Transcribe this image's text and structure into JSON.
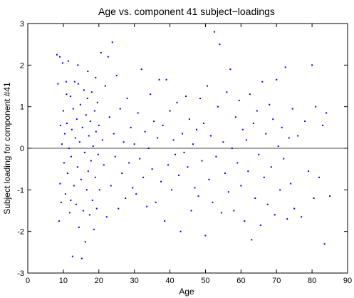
{
  "chart_data": {
    "type": "scatter",
    "title": "Age vs. component 41 subject−loadings",
    "xlabel": "Age",
    "ylabel": "Subject loading for component #41",
    "xlim": [
      0,
      90
    ],
    "ylim": [
      -3,
      3
    ],
    "xticks": [
      0,
      10,
      20,
      30,
      40,
      50,
      60,
      70,
      80,
      90
    ],
    "yticks": [
      -3,
      -2,
      -1,
      0,
      1,
      2,
      3
    ],
    "reference_line_y": 0,
    "grid": false,
    "legend": "none",
    "colors": {
      "points": "#0000ff",
      "axes": "#000000",
      "zero_line": "#444444"
    },
    "series": [
      {
        "points": [
          [
            8.2,
            2.25
          ],
          [
            8.5,
            1.55
          ],
          [
            8.8,
            -1.75
          ],
          [
            9.0,
            2.2
          ],
          [
            9.2,
            0.55
          ],
          [
            9.4,
            -1.3
          ],
          [
            9.6,
            0.1
          ],
          [
            9.8,
            2.05
          ],
          [
            10.0,
            0.9
          ],
          [
            10.2,
            -0.35
          ],
          [
            10.4,
            0.35
          ],
          [
            10.6,
            -1.1
          ],
          [
            10.8,
            1.6
          ],
          [
            11.0,
            0.6
          ],
          [
            11.2,
            -0.6
          ],
          [
            11.4,
            2.1
          ],
          [
            11.6,
            0.0
          ],
          [
            11.8,
            -1.55
          ],
          [
            12.0,
            1.25
          ],
          [
            12.2,
            -0.2
          ],
          [
            12.4,
            0.45
          ],
          [
            12.6,
            -2.6
          ],
          [
            12.8,
            0.95
          ],
          [
            13.0,
            -0.9
          ],
          [
            13.2,
            1.6
          ],
          [
            13.4,
            0.25
          ],
          [
            13.6,
            -1.35
          ],
          [
            13.8,
            0.7
          ],
          [
            14.0,
            -0.45
          ],
          [
            14.2,
            1.55
          ],
          [
            14.4,
            -1.9
          ],
          [
            14.6,
            0.15
          ],
          [
            14.8,
            1.05
          ],
          [
            15.0,
            -0.75
          ],
          [
            15.2,
            -2.65
          ],
          [
            15.4,
            0.5
          ],
          [
            15.6,
            -1.5
          ],
          [
            15.8,
            1.4
          ],
          [
            16.0,
            -0.1
          ],
          [
            16.2,
            -2.25
          ],
          [
            16.4,
            0.8
          ],
          [
            16.6,
            -1.0
          ],
          [
            16.8,
            1.2
          ],
          [
            17.0,
            -0.55
          ],
          [
            17.2,
            0.3
          ],
          [
            17.4,
            -1.6
          ],
          [
            17.6,
            0.65
          ],
          [
            17.8,
            -0.3
          ],
          [
            18.0,
            1.35
          ],
          [
            18.2,
            -1.25
          ],
          [
            18.4,
            0.05
          ],
          [
            18.6,
            -1.95
          ],
          [
            18.8,
            0.9
          ],
          [
            19.0,
            -0.7
          ],
          [
            19.2,
            0.4
          ],
          [
            19.4,
            -1.45
          ],
          [
            19.6,
            1.1
          ],
          [
            19.8,
            -0.15
          ],
          [
            20.0,
            0.55
          ],
          [
            20.2,
            -1.0
          ],
          [
            20.6,
            2.3
          ],
          [
            21.0,
            0.2
          ],
          [
            21.4,
            -0.4
          ],
          [
            21.8,
            1.5
          ],
          [
            22.2,
            -1.65
          ],
          [
            22.6,
            2.2
          ],
          [
            23.0,
            0.75
          ],
          [
            23.4,
            -0.9
          ],
          [
            23.8,
            2.55
          ],
          [
            24.2,
            0.35
          ],
          [
            24.6,
            -0.2
          ],
          [
            25.0,
            1.75
          ],
          [
            25.5,
            -1.45
          ],
          [
            26.0,
            0.95
          ],
          [
            26.5,
            -0.6
          ],
          [
            27.0,
            0.15
          ],
          [
            27.5,
            -1.2
          ],
          [
            28.0,
            1.2
          ],
          [
            28.5,
            -0.35
          ],
          [
            29.0,
            0.5
          ],
          [
            29.5,
            -0.95
          ],
          [
            30.0,
            0.1
          ],
          [
            30.5,
            -1.1
          ],
          [
            31.0,
            0.85
          ],
          [
            31.5,
            -0.25
          ],
          [
            32.0,
            1.9
          ],
          [
            32.5,
            -0.7
          ],
          [
            33.0,
            0.4
          ],
          [
            33.5,
            -1.4
          ],
          [
            34.0,
            0.0
          ],
          [
            34.5,
            1.3
          ],
          [
            35.0,
            -0.5
          ],
          [
            35.5,
            0.65
          ],
          [
            36.0,
            -1.3
          ],
          [
            36.5,
            0.25
          ],
          [
            37.0,
            1.65
          ],
          [
            37.5,
            -0.8
          ],
          [
            38.0,
            0.55
          ],
          [
            38.5,
            -1.75
          ],
          [
            39.0,
            1.65
          ],
          [
            39.5,
            -0.4
          ],
          [
            40.0,
            0.9
          ],
          [
            40.5,
            -1.0
          ],
          [
            41.0,
            0.2
          ],
          [
            41.5,
            -0.15
          ],
          [
            42.0,
            1.1
          ],
          [
            42.5,
            -0.65
          ],
          [
            43.0,
            -2.0
          ],
          [
            43.5,
            0.35
          ],
          [
            44.0,
            -0.1
          ],
          [
            44.5,
            1.25
          ],
          [
            45.0,
            -0.45
          ],
          [
            45.5,
            0.7
          ],
          [
            46.0,
            -1.5
          ],
          [
            46.5,
            0.1
          ],
          [
            47.0,
            -0.95
          ],
          [
            47.5,
            0.45
          ],
          [
            48.0,
            -1.15
          ],
          [
            48.5,
            1.2
          ],
          [
            49.0,
            -0.3
          ],
          [
            49.5,
            0.6
          ],
          [
            50.0,
            -2.1
          ],
          [
            50.5,
            1.5
          ],
          [
            51.0,
            -0.75
          ],
          [
            51.5,
            0.3
          ],
          [
            52.0,
            -1.3
          ],
          [
            52.5,
            2.8
          ],
          [
            53.0,
            -0.2
          ],
          [
            53.5,
            1.0
          ],
          [
            54.0,
            2.5
          ],
          [
            54.5,
            -1.55
          ],
          [
            55.0,
            0.15
          ],
          [
            55.5,
            -0.6
          ],
          [
            56.0,
            1.35
          ],
          [
            56.5,
            -1.05
          ],
          [
            57.0,
            1.9
          ],
          [
            57.5,
            0.0
          ],
          [
            58.0,
            -1.5
          ],
          [
            58.5,
            0.75
          ],
          [
            59.0,
            -0.35
          ],
          [
            59.5,
            1.15
          ],
          [
            60.0,
            -0.9
          ],
          [
            60.5,
            0.45
          ],
          [
            61.0,
            -1.75
          ],
          [
            61.5,
            0.2
          ],
          [
            62.0,
            -0.55
          ],
          [
            62.5,
            1.3
          ],
          [
            63.0,
            -2.2
          ],
          [
            63.5,
            0.6
          ],
          [
            64.0,
            -1.2
          ],
          [
            64.5,
            0.9
          ],
          [
            65.0,
            -0.15
          ],
          [
            65.5,
            -1.85
          ],
          [
            66.0,
            1.6
          ],
          [
            66.5,
            -0.7
          ],
          [
            67.0,
            0.35
          ],
          [
            67.5,
            -1.35
          ],
          [
            68.0,
            1.05
          ],
          [
            68.5,
            -0.45
          ],
          [
            69.0,
            0.7
          ],
          [
            69.5,
            -1.6
          ],
          [
            70.0,
            1.65
          ],
          [
            70.5,
            0.05
          ],
          [
            71.0,
            -1.0
          ],
          [
            71.5,
            0.5
          ],
          [
            72.0,
            -0.25
          ],
          [
            72.5,
            1.95
          ],
          [
            73.0,
            -1.7
          ],
          [
            73.5,
            0.25
          ],
          [
            74.0,
            -0.85
          ],
          [
            74.5,
            0.95
          ],
          [
            75.0,
            -1.45
          ],
          [
            76.0,
            0.3
          ],
          [
            77.0,
            -1.65
          ],
          [
            78.0,
            0.65
          ],
          [
            79.0,
            -0.55
          ],
          [
            80.0,
            2.0
          ],
          [
            80.5,
            -1.2
          ],
          [
            81.0,
            1.0
          ],
          [
            82.0,
            -0.7
          ],
          [
            83.0,
            0.55
          ],
          [
            83.5,
            -2.3
          ],
          [
            84.0,
            0.85
          ],
          [
            85.0,
            -1.15
          ],
          [
            9.1,
            -0.85
          ],
          [
            10.9,
            1.3
          ],
          [
            12.1,
            -1.25
          ],
          [
            14.1,
            2.0
          ],
          [
            16.9,
            1.85
          ],
          [
            19.1,
            1.7
          ]
        ]
      }
    ]
  }
}
